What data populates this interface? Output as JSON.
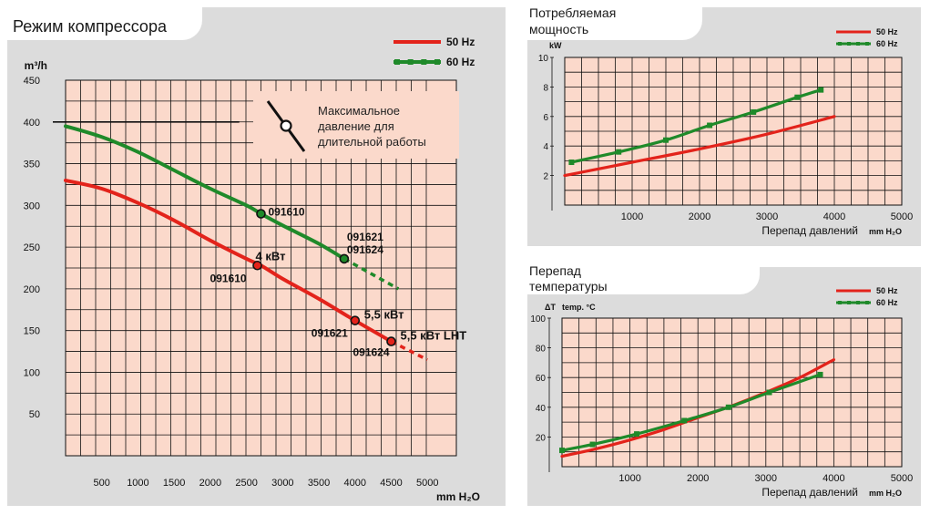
{
  "main": {
    "title": "Режим компрессора",
    "legend": [
      "50 Hz",
      "60 Hz"
    ],
    "note_lines": [
      "Максимальное",
      "давление для",
      "длительной работы"
    ]
  },
  "power": {
    "title_lines": [
      "Потребляемая",
      "мощность"
    ]
  },
  "temp": {
    "title_lines": [
      "Перепад",
      "температуры"
    ]
  },
  "colors": {
    "hz50": "#e3231b",
    "hz60": "#1f8a2a",
    "plot_bg": "#fbd9cb",
    "panel": "#dcdcdc"
  },
  "chart_data": [
    {
      "type": "line",
      "title": "Режим компрессора",
      "xlabel": "mm H₂O",
      "ylabel": "m³/h",
      "xlim": [
        0,
        5400
      ],
      "ylim": [
        0,
        450
      ],
      "xticks": [
        500,
        1000,
        1500,
        2000,
        2500,
        3000,
        3500,
        4000,
        4500,
        5000
      ],
      "yticks": [
        50,
        100,
        150,
        200,
        250,
        300,
        350,
        400,
        450
      ],
      "legend": [
        "50 Hz",
        "60 Hz"
      ],
      "max_pressure_line": {
        "y": 400,
        "x_end": 2400
      },
      "series": [
        {
          "name": "50 Hz",
          "solid": [
            [
              0,
              330
            ],
            [
              500,
              320
            ],
            [
              1000,
              303
            ],
            [
              1500,
              282
            ],
            [
              2000,
              258
            ],
            [
              2500,
              236
            ],
            [
              2700,
              228
            ],
            [
              3000,
              212
            ],
            [
              3500,
              188
            ],
            [
              4000,
              162
            ],
            [
              4500,
              137
            ]
          ],
          "dashed": [
            [
              4500,
              137
            ],
            [
              5000,
              115
            ]
          ]
        },
        {
          "name": "60 Hz",
          "solid": [
            [
              0,
              395
            ],
            [
              500,
              382
            ],
            [
              1000,
              364
            ],
            [
              1500,
              342
            ],
            [
              2000,
              320
            ],
            [
              2500,
              300
            ],
            [
              2700,
              290
            ],
            [
              3000,
              276
            ],
            [
              3500,
              254
            ],
            [
              3850,
              236
            ]
          ],
          "dashed": [
            [
              3850,
              236
            ],
            [
              4600,
              200
            ]
          ]
        }
      ],
      "points": [
        {
          "x": 2700,
          "y": 290,
          "label": "091610",
          "color": "60 Hz"
        },
        {
          "x": 3850,
          "y": 236,
          "label": "091621 091624",
          "color": "60 Hz"
        },
        {
          "x": 2650,
          "y": 228,
          "label": "4 кВт",
          "sub": "091610",
          "color": "50 Hz"
        },
        {
          "x": 4000,
          "y": 162,
          "label": "5,5 кВт",
          "sub": "091621",
          "color": "50 Hz"
        },
        {
          "x": 4500,
          "y": 137,
          "label": "5,5 кВт LHT",
          "sub": "091624",
          "color": "50 Hz"
        }
      ],
      "annotations": [
        "Максимальное давление для длительной работы"
      ]
    },
    {
      "type": "line",
      "title": "Потребляемая мощность",
      "xlabel": "Перепад давлений",
      "xunit": "mm H₂O",
      "ylabel": "kW",
      "xlim": [
        0,
        5000
      ],
      "ylim": [
        0,
        10
      ],
      "xticks": [
        1000,
        2000,
        3000,
        4000,
        5000
      ],
      "yticks": [
        2,
        4,
        6,
        8,
        10
      ],
      "legend": [
        "50 Hz",
        "60 Hz"
      ],
      "series": [
        {
          "name": "50 Hz",
          "x": [
            0,
            1000,
            2000,
            3000,
            4000
          ],
          "y": [
            2.0,
            2.9,
            3.8,
            4.8,
            6.0
          ]
        },
        {
          "name": "60 Hz",
          "x": [
            100,
            800,
            1500,
            2150,
            2800,
            3450,
            3800
          ],
          "y": [
            2.9,
            3.6,
            4.4,
            5.4,
            6.3,
            7.3,
            7.8
          ]
        }
      ]
    },
    {
      "type": "line",
      "title": "Перепад температуры",
      "xlabel": "Перепад давлений",
      "xunit": "mm H₂O",
      "ylabel": "ΔT",
      "yunit": "temp. °C",
      "xlim": [
        0,
        5000
      ],
      "ylim": [
        0,
        100
      ],
      "xticks": [
        1000,
        2000,
        3000,
        4000,
        5000
      ],
      "yticks": [
        20,
        40,
        60,
        80,
        100
      ],
      "legend": [
        "50 Hz",
        "60 Hz"
      ],
      "series": [
        {
          "name": "50 Hz",
          "x": [
            0,
            500,
            1000,
            1500,
            2000,
            2500,
            3000,
            3500,
            4000
          ],
          "y": [
            7,
            12,
            18,
            25,
            33,
            41,
            50,
            60,
            72
          ]
        },
        {
          "name": "60 Hz",
          "x": [
            0,
            450,
            1100,
            1800,
            2450,
            3050,
            3800
          ],
          "y": [
            11,
            15,
            22,
            31,
            40,
            50,
            62
          ]
        }
      ]
    }
  ]
}
